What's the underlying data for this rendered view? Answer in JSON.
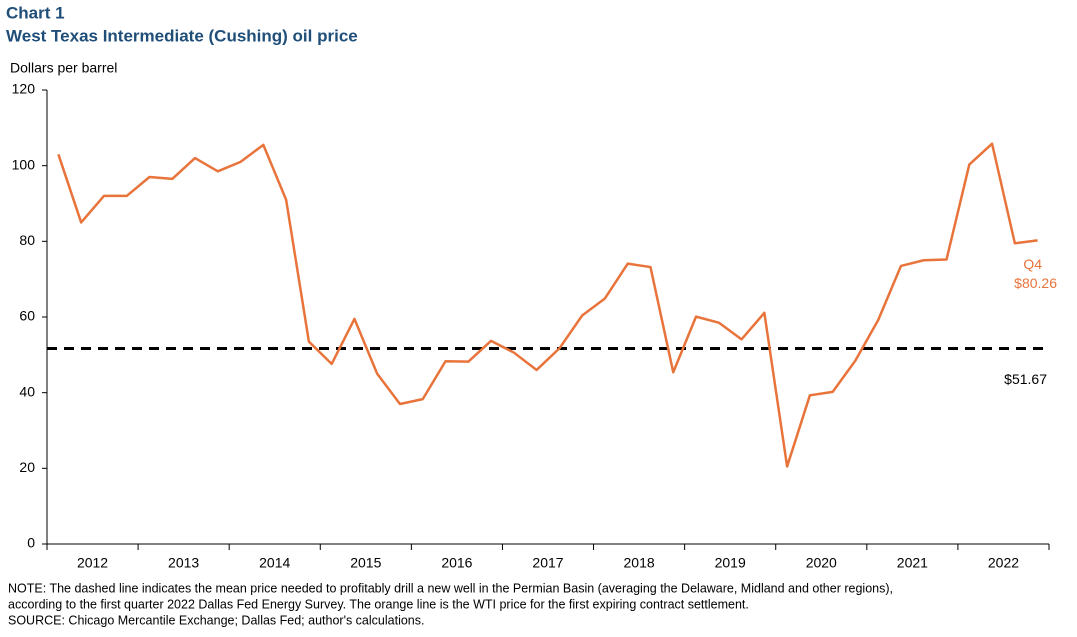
{
  "chart_data": {
    "type": "line",
    "title": "Chart 1",
    "subtitle": "West Texas Intermediate (Cushing) oil price",
    "y_label": "Dollars  per barrel",
    "categories": [
      null,
      "2012",
      null,
      null,
      null,
      "2013",
      null,
      null,
      null,
      "2014",
      null,
      null,
      null,
      "2015",
      null,
      null,
      null,
      "2016",
      null,
      null,
      null,
      "2017",
      null,
      null,
      null,
      "2018",
      null,
      null,
      null,
      "2019",
      null,
      null,
      null,
      "2020",
      null,
      null,
      null,
      "2021",
      null,
      null,
      null,
      "2022",
      null,
      null
    ],
    "series": [
      {
        "name": "WTI price",
        "color": "#e8743b",
        "values": [
          103,
          85,
          92,
          92,
          97,
          96.5,
          102,
          98.5,
          101,
          105.5,
          91,
          53.5,
          47.6,
          59.5,
          45,
          37,
          38.3,
          48.3,
          48.2,
          53.7,
          50.6,
          46,
          51.7,
          60.4,
          64.9,
          74.1,
          73.2,
          45.4,
          60.1,
          58.5,
          54.1,
          61.1,
          20.5,
          39.3,
          40.2,
          48.5,
          59.2,
          73.5,
          75,
          75.2,
          100.3,
          105.8,
          79.5,
          80.26
        ],
        "value_labels": [
          null,
          null,
          null,
          null,
          null,
          null,
          null,
          null,
          null,
          null,
          null,
          null,
          null,
          null,
          null,
          null,
          null,
          null,
          null,
          null,
          null,
          null,
          null,
          null,
          null,
          null,
          null,
          null,
          null,
          null,
          null,
          null,
          null,
          null,
          null,
          null,
          null,
          null,
          null,
          null,
          null,
          null,
          null,
          "$80.26"
        ]
      }
    ],
    "last_point_note": "Q4",
    "reference_line": {
      "value": 51.67,
      "label": "$51.67",
      "color": "#000000"
    },
    "ylim": [
      0,
      120
    ],
    "yticks": [
      0,
      20,
      40,
      60,
      80,
      100,
      120
    ],
    "notes": [
      "NOTE: The dashed line indicates the mean price needed to profitably drill a new well in the Permian Basin (averaging the Delaware, Midland and other regions),",
      "according to the first quarter 2022 Dallas Fed Energy Survey. The orange line is the WTI price for the first expiring contract settlement.",
      "SOURCE:  Chicago Mercantile Exchange;  Dallas Fed; author's calculations."
    ]
  }
}
